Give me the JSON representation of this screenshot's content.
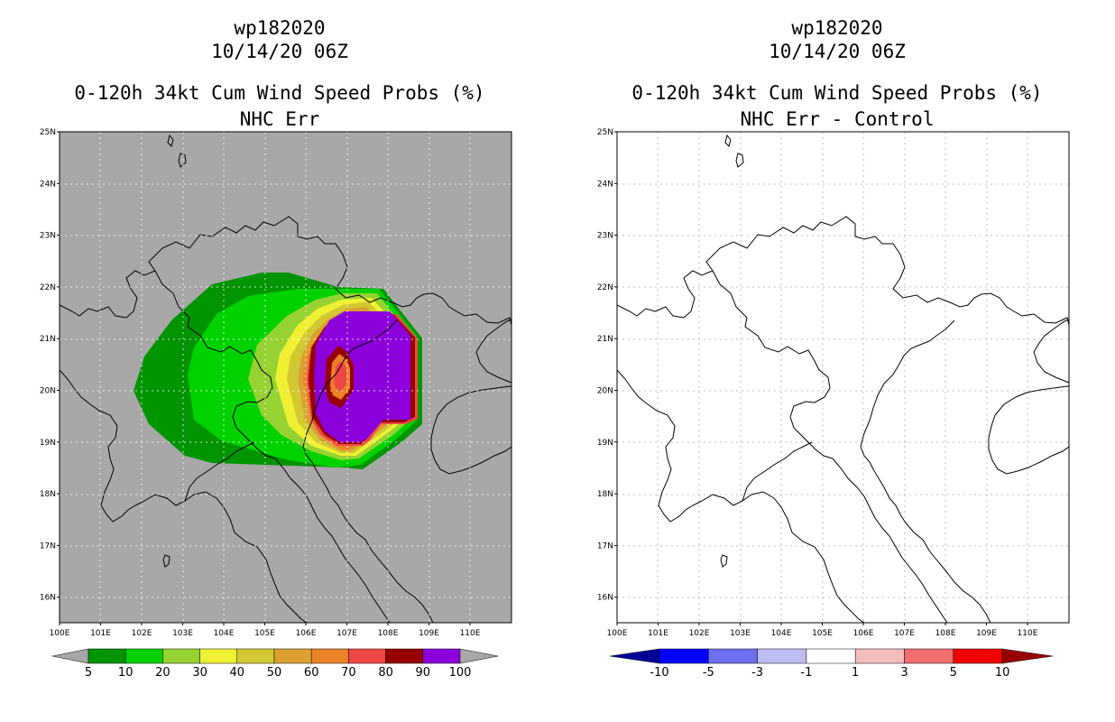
{
  "left_panel": {
    "title_line1": "wp182020",
    "title_line2": "10/14/20 06Z",
    "title_line3": "0-120h 34kt Cum Wind Speed Probs (%)",
    "title_line4": "NHC Err",
    "colorbar_labels": [
      "5",
      "10",
      "20",
      "30",
      "40",
      "50",
      "60",
      "70",
      "80",
      "90",
      "100"
    ],
    "colorbar_colors": [
      "#009400",
      "#00d200",
      "#96d232",
      "#f0f032",
      "#d2c832",
      "#dca032",
      "#eb8228",
      "#f04646",
      "#960000",
      "#8c00dc"
    ],
    "background_color": "#a8a8a8"
  },
  "right_panel": {
    "title_line1": "wp182020",
    "title_line2": "10/14/20 06Z",
    "title_line3": "0-120h 34kt Cum Wind Speed Probs (%)",
    "title_line4": "NHC Err - Control",
    "colorbar_labels": [
      "-10",
      "-5",
      "-3",
      "-1",
      "1",
      "3",
      "5",
      "10"
    ],
    "colorbar_colors": [
      "#000096",
      "#0000ff",
      "#6e6ef0",
      "#bebef5",
      "#ffffff",
      "#f5bebe",
      "#f06e6e",
      "#f00000",
      "#960000"
    ]
  },
  "axes": {
    "lat_labels": [
      "25N",
      "24N",
      "23N",
      "22N",
      "21N",
      "20N",
      "19N",
      "18N",
      "17N",
      "16N"
    ],
    "lon_labels": [
      "100E",
      "101E",
      "102E",
      "103E",
      "104E",
      "105E",
      "106E",
      "107E",
      "108E",
      "109E",
      "110E"
    ]
  }
}
